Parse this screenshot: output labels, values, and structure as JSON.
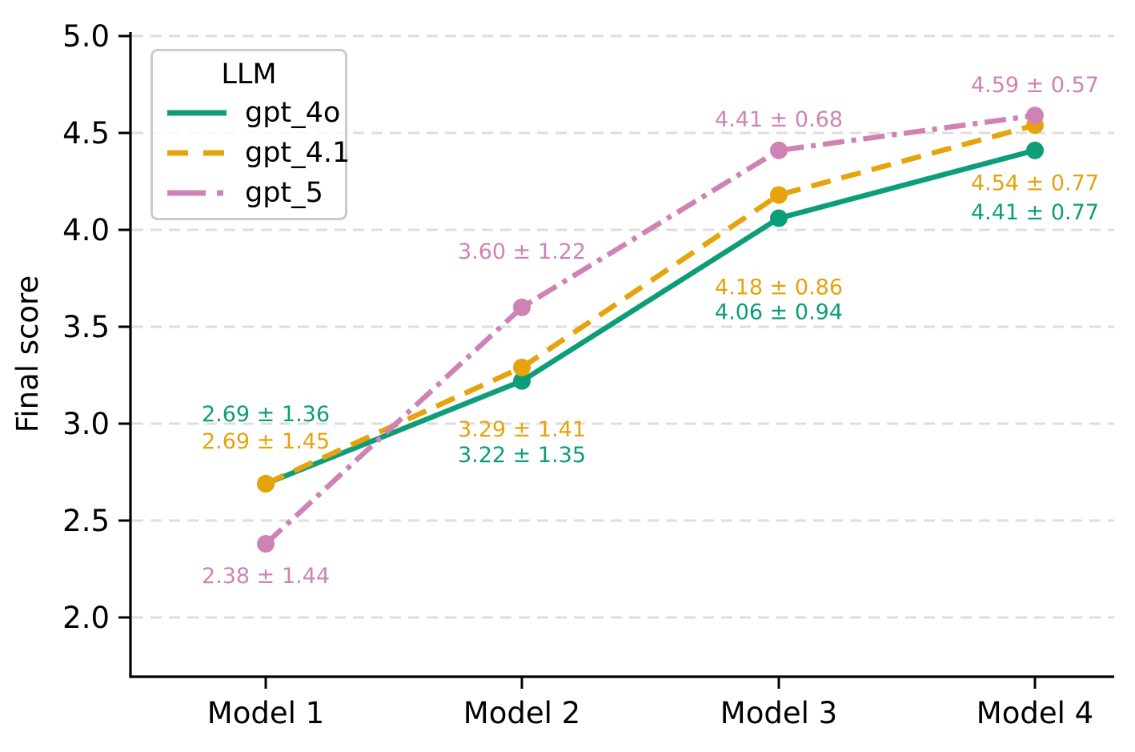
{
  "chart_data": {
    "type": "line",
    "title": "",
    "xlabel": "",
    "ylabel": "Final score",
    "categories": [
      "Model 1",
      "Model 2",
      "Model 3",
      "Model 4"
    ],
    "yticks": [
      2.0,
      2.5,
      3.0,
      3.5,
      4.0,
      4.5,
      5.0
    ],
    "ylim": [
      1.7,
      5.03
    ],
    "grid": "horizontal dashed gridlines at each 0.5",
    "legend": {
      "title": "LLM",
      "position": "upper left"
    },
    "axis_color": "#000000",
    "grid_color": "#dedede",
    "series": [
      {
        "name": "gpt_4o",
        "color": "#0d9d78",
        "line_style": "solid",
        "values": [
          2.69,
          3.22,
          4.06,
          4.41
        ],
        "errors": [
          1.36,
          1.35,
          0.94,
          0.77
        ],
        "point_labels": [
          "2.69 ± 1.36",
          "3.22 ± 1.35",
          "4.06 ± 0.94",
          "4.41 ± 0.77"
        ]
      },
      {
        "name": "gpt_4.1",
        "color": "#e5a30c",
        "line_style": "dashed",
        "values": [
          2.69,
          3.29,
          4.18,
          4.54
        ],
        "errors": [
          1.45,
          1.41,
          0.86,
          0.77
        ],
        "point_labels": [
          "2.69 ± 1.45",
          "3.29 ± 1.41",
          "4.18 ± 0.86",
          "4.54 ± 0.77"
        ]
      },
      {
        "name": "gpt_5",
        "color": "#cf83b5",
        "line_style": "dashdot",
        "values": [
          2.38,
          3.6,
          4.41,
          4.59
        ],
        "errors": [
          1.44,
          1.22,
          0.68,
          0.57
        ],
        "point_labels": [
          "2.38 ± 1.44",
          "3.60 ± 1.22",
          "4.41 ± 0.68",
          "4.59 ± 0.57"
        ]
      }
    ]
  }
}
